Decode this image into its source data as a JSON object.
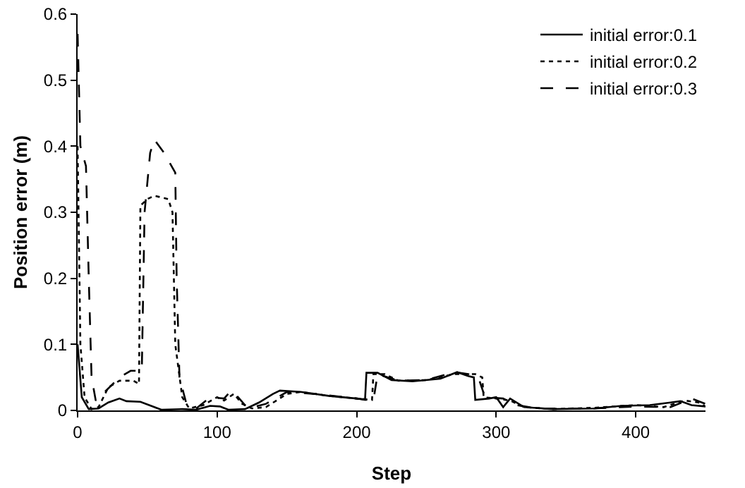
{
  "chart_data": {
    "type": "line",
    "xlabel": "Step",
    "ylabel": "Position error (m)",
    "xlim": [
      0,
      450
    ],
    "xticks": [
      0,
      100,
      200,
      300,
      400
    ],
    "ylim": [
      0,
      0.6
    ],
    "yticks": [
      0,
      0.1,
      0.2,
      0.3,
      0.4,
      0.5,
      0.6
    ],
    "grid": false,
    "legend": "top right",
    "marker": "none",
    "series": [
      {
        "name": "initial error:0.1",
        "color": "#000000",
        "line_style": "solid",
        "x": [
          0,
          3,
          8,
          15,
          22,
          30,
          35,
          45,
          55,
          60,
          75,
          85,
          95,
          102,
          108,
          120,
          130,
          140,
          145,
          160,
          180,
          200,
          206,
          207,
          215,
          225,
          240,
          260,
          272,
          280,
          284,
          285,
          295,
          300,
          305,
          310,
          320,
          340,
          370,
          390,
          410,
          425,
          432,
          440,
          450
        ],
        "values": [
          0.1,
          0.02,
          0.002,
          0.003,
          0.012,
          0.018,
          0.014,
          0.013,
          0.005,
          0.001,
          0.002,
          0.001,
          0.007,
          0.006,
          0.001,
          0.002,
          0.012,
          0.025,
          0.03,
          0.028,
          0.022,
          0.018,
          0.016,
          0.057,
          0.057,
          0.046,
          0.044,
          0.048,
          0.058,
          0.052,
          0.05,
          0.016,
          0.018,
          0.02,
          0.005,
          0.018,
          0.005,
          0.002,
          0.003,
          0.007,
          0.008,
          0.012,
          0.014,
          0.008,
          0.006
        ]
      },
      {
        "name": "initial error:0.2",
        "color": "#000000",
        "line_style": "dotted",
        "x": [
          0,
          2,
          5,
          10,
          15,
          22,
          30,
          40,
          44,
          45,
          50,
          55,
          65,
          68,
          70,
          75,
          80,
          90,
          100,
          105,
          112,
          118,
          125,
          135,
          150,
          160,
          180,
          200,
          211,
          212,
          220,
          230,
          250,
          270,
          285,
          290,
          291,
          300,
          310,
          320,
          340,
          370,
          400,
          420,
          435,
          445,
          450
        ],
        "values": [
          0.4,
          0.1,
          0.02,
          0.002,
          0.005,
          0.035,
          0.045,
          0.045,
          0.04,
          0.31,
          0.32,
          0.325,
          0.32,
          0.3,
          0.1,
          0.02,
          0.003,
          0.008,
          0.02,
          0.015,
          0.025,
          0.01,
          0.003,
          0.005,
          0.025,
          0.028,
          0.022,
          0.018,
          0.016,
          0.055,
          0.055,
          0.045,
          0.046,
          0.055,
          0.055,
          0.05,
          0.02,
          0.018,
          0.015,
          0.005,
          0.002,
          0.004,
          0.008,
          0.005,
          0.015,
          0.012,
          0.006
        ]
      },
      {
        "name": "initial error:0.3",
        "color": "#000000",
        "line_style": "dashed",
        "x": [
          0,
          2,
          6,
          8,
          10,
          13,
          18,
          30,
          38,
          46,
          48,
          52,
          55,
          62,
          70,
          71,
          73,
          78,
          85,
          95,
          105,
          110,
          115,
          122,
          135,
          150,
          170,
          200,
          212,
          215,
          230,
          250,
          270,
          280,
          288,
          292,
          305,
          315,
          330,
          370,
          400,
          425,
          440,
          450
        ],
        "values": [
          0.57,
          0.4,
          0.37,
          0.2,
          0.05,
          0.015,
          0.025,
          0.05,
          0.06,
          0.06,
          0.3,
          0.39,
          0.41,
          0.39,
          0.36,
          0.2,
          0.05,
          0.01,
          0.003,
          0.02,
          0.018,
          0.03,
          0.02,
          0.003,
          0.01,
          0.028,
          0.025,
          0.018,
          0.015,
          0.055,
          0.045,
          0.046,
          0.058,
          0.055,
          0.045,
          0.02,
          0.018,
          0.008,
          0.003,
          0.003,
          0.006,
          0.005,
          0.018,
          0.01
        ]
      }
    ]
  }
}
